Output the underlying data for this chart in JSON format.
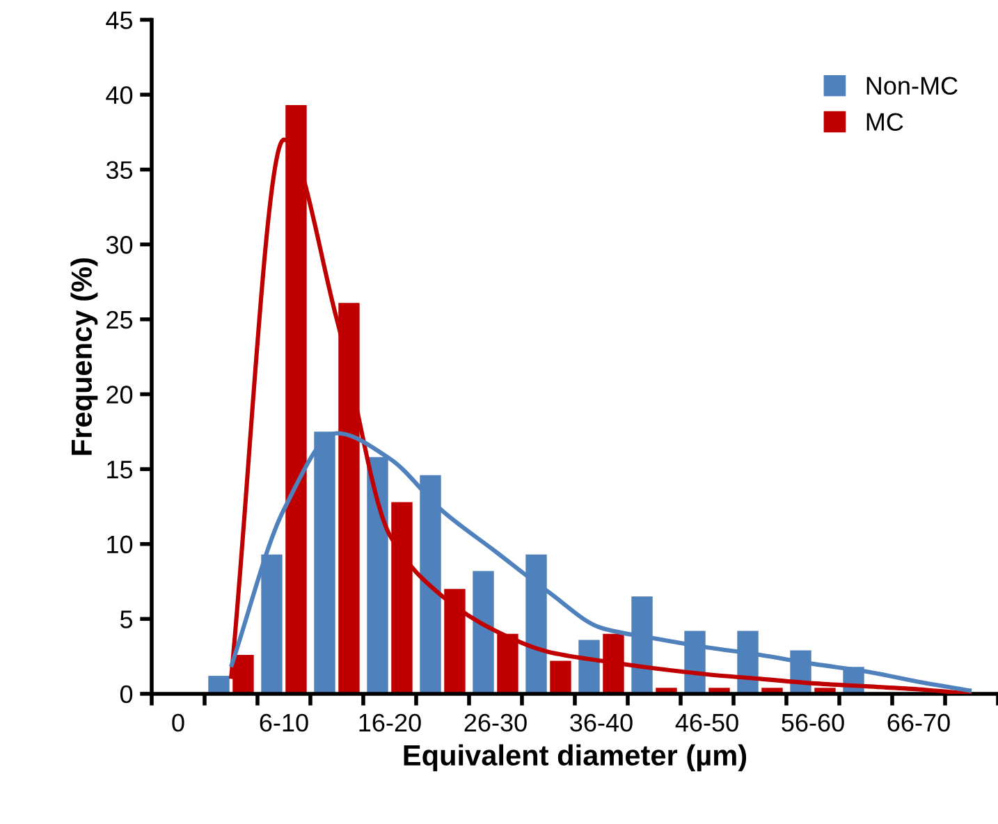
{
  "chart_data": {
    "type": "bar",
    "xlabel": "Equivalent diameter (µm)",
    "ylabel": "Frequency (%)",
    "categories": [
      "0",
      null,
      "6-10",
      null,
      "16-20",
      null,
      "26-30",
      null,
      "36-40",
      null,
      "46-50",
      null,
      "56-60",
      null,
      "66-70",
      null
    ],
    "ylim": [
      0,
      45
    ],
    "yticks": [
      0,
      5,
      10,
      15,
      20,
      25,
      30,
      35,
      40,
      45
    ],
    "grid": false,
    "legend": "top right",
    "series": [
      {
        "name": "Non-MC",
        "color": "#4f81bd",
        "values": [
          null,
          1.2,
          9.3,
          17.5,
          15.8,
          14.6,
          8.2,
          9.3,
          3.6,
          6.5,
          4.2,
          4.2,
          2.9,
          1.8,
          null,
          null
        ]
      },
      {
        "name": "MC",
        "color": "#c00000",
        "values": [
          null,
          2.6,
          39.3,
          26.1,
          12.8,
          7.0,
          4.0,
          2.2,
          4.0,
          0.4,
          0.4,
          0.4,
          0.4,
          null,
          null,
          null
        ]
      },
      {
        "type": "line",
        "color": "#c00000",
        "values": [
          null,
          1.0,
          37,
          25,
          10.6,
          6.5,
          4.2,
          2.8,
          2.2,
          1.7,
          1.3,
          1.0,
          0.7,
          0.5,
          0.3,
          0
        ]
      },
      {
        "type": "line",
        "color": "#4f81bd",
        "values": [
          null,
          1.8,
          12.3,
          17.4,
          15.7,
          12.2,
          9.5,
          6.8,
          4.4,
          3.7,
          3.1,
          2.6,
          2.0,
          1.5,
          0.8,
          0.2
        ]
      }
    ]
  }
}
